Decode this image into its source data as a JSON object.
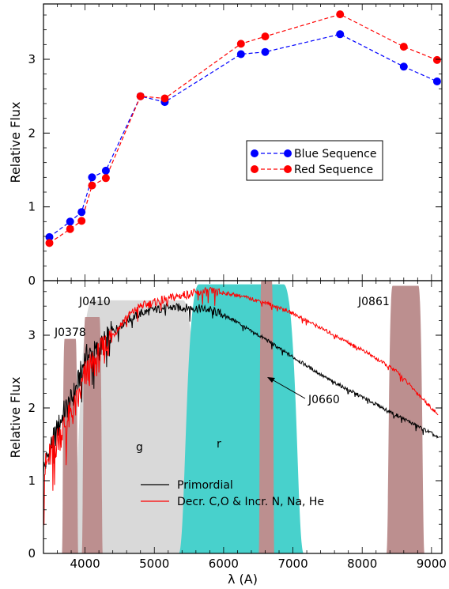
{
  "chart_data": [
    {
      "type": "line",
      "ylabel": "Relative Flux",
      "ylim": [
        0,
        3.75
      ],
      "xlim": [
        3400,
        9150
      ],
      "yticks": [
        0,
        1,
        2,
        3
      ],
      "legend_position": "center-right",
      "series": [
        {
          "name": "Blue Sequence",
          "color": "#0000ff",
          "x": [
            3485,
            3785,
            3950,
            4100,
            4300,
            4800,
            5150,
            6250,
            6600,
            7680,
            8600,
            9080
          ],
          "values": [
            0.59,
            0.8,
            0.93,
            1.4,
            1.49,
            2.5,
            2.42,
            3.07,
            3.1,
            3.34,
            2.9,
            2.7
          ]
        },
        {
          "name": "Red Sequence",
          "color": "#ff0000",
          "x": [
            3485,
            3785,
            3950,
            4100,
            4300,
            4800,
            5150,
            6250,
            6600,
            7680,
            8600,
            9080
          ],
          "values": [
            0.51,
            0.7,
            0.81,
            1.29,
            1.39,
            2.5,
            2.47,
            3.21,
            3.31,
            3.61,
            3.17,
            2.99
          ]
        }
      ]
    },
    {
      "type": "area",
      "xlabel": "λ (A)",
      "ylabel": "Relative Flux",
      "ylim": [
        0,
        3.75
      ],
      "xlim": [
        3400,
        9150
      ],
      "xticks": [
        4000,
        5000,
        6000,
        7000,
        8000,
        9000
      ],
      "yticks": [
        0,
        1,
        2,
        3
      ],
      "filters": [
        {
          "label": "g",
          "color": "#d9d9d9",
          "lo": 3900,
          "hi": 5620,
          "peak": 3.48
        },
        {
          "label": "r",
          "color": "#48d1cc",
          "lo": 5450,
          "hi": 7060,
          "peak": 3.7
        },
        {
          "label": "J0378",
          "color": "#bc8f8f",
          "lo": 3680,
          "hi": 3890,
          "peak": 2.95
        },
        {
          "label": "J0410",
          "color": "#bc8f8f",
          "lo": 3970,
          "hi": 4240,
          "peak": 3.25
        },
        {
          "label": "J0660",
          "color": "#bc8f8f",
          "lo": 6520,
          "hi": 6720,
          "peak": 3.75
        },
        {
          "label": "J0861",
          "color": "#bc8f8f",
          "lo": 8380,
          "hi": 8870,
          "peak": 3.68
        }
      ],
      "series": [
        {
          "name": "Primordial",
          "color": "#000000",
          "x": [
            3400,
            3500,
            3600,
            3700,
            3800,
            3900,
            4000,
            4100,
            4200,
            4400,
            4600,
            4800,
            5000,
            5200,
            5400,
            5600,
            5800,
            6000,
            6200,
            6400,
            6600,
            6800,
            7000,
            7500,
            8000,
            8500,
            9000,
            9100
          ],
          "values": [
            1.15,
            1.45,
            1.7,
            1.95,
            2.1,
            2.35,
            2.7,
            2.75,
            2.8,
            3.05,
            3.2,
            3.3,
            3.35,
            3.38,
            3.38,
            3.37,
            3.35,
            3.28,
            3.18,
            3.05,
            2.95,
            2.82,
            2.7,
            2.4,
            2.15,
            1.9,
            1.65,
            1.58
          ]
        },
        {
          "name": "Decr. C,O & Incr. N, Na, He",
          "color": "#ff0000",
          "x": [
            3400,
            3500,
            3600,
            3700,
            3800,
            3900,
            4000,
            4100,
            4200,
            4400,
            4600,
            4800,
            5000,
            5200,
            5400,
            5600,
            5800,
            6000,
            6200,
            6400,
            6600,
            6800,
            7000,
            7500,
            8000,
            8500,
            9000,
            9100
          ],
          "values": [
            1.1,
            1.35,
            1.55,
            1.75,
            1.9,
            2.1,
            2.45,
            2.55,
            2.7,
            3.0,
            3.25,
            3.4,
            3.45,
            3.5,
            3.55,
            3.58,
            3.6,
            3.58,
            3.55,
            3.5,
            3.45,
            3.38,
            3.3,
            3.05,
            2.8,
            2.5,
            2.0,
            1.9
          ]
        }
      ]
    }
  ]
}
